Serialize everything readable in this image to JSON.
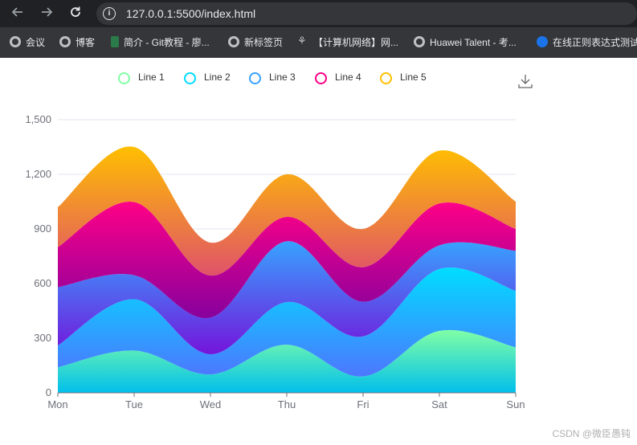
{
  "browser": {
    "url": "127.0.0.1:5500/index.html",
    "back_icon": "arrow-left-icon",
    "forward_icon": "arrow-right-icon",
    "reload_icon": "reload-icon"
  },
  "bookmarks": [
    {
      "label": "会议",
      "icon": "globe-icon"
    },
    {
      "label": "博客",
      "icon": "globe-icon"
    },
    {
      "label": "简介 - Git教程 - 廖...",
      "icon": "git-icon"
    },
    {
      "label": "新标签页",
      "icon": "globe-icon"
    },
    {
      "label": "【计算机网络】网...",
      "icon": "network-icon"
    },
    {
      "label": "Huawei Talent - 考...",
      "icon": "globe-icon"
    },
    {
      "label": "在线正则表达式测试",
      "icon": "regex-icon"
    }
  ],
  "toolbox": {
    "save_icon": "download-icon"
  },
  "watermark": "CSDN @微臣愚钝",
  "chart_data": {
    "type": "area",
    "stacked": true,
    "smooth": true,
    "categories": [
      "Mon",
      "Tue",
      "Wed",
      "Thu",
      "Fri",
      "Sat",
      "Sun"
    ],
    "ylim": [
      0,
      1500
    ],
    "yticks": [
      0,
      300,
      600,
      900,
      1200,
      1500
    ],
    "ytick_labels": [
      "0",
      "300",
      "600",
      "900",
      "1,200",
      "1,500"
    ],
    "grid": true,
    "legend_position": "top-center",
    "series": [
      {
        "name": "Line 1",
        "values": [
          140,
          232,
          101,
          264,
          90,
          340,
          250
        ],
        "legend_color": "#80FFA5",
        "gradient": [
          "#80FFA5",
          "#01BFEC"
        ]
      },
      {
        "name": "Line 2",
        "values": [
          120,
          282,
          111,
          234,
          220,
          340,
          310
        ],
        "legend_color": "#00DDFF",
        "gradient": [
          "#00DDFF",
          "#4D77FF"
        ]
      },
      {
        "name": "Line 3",
        "values": [
          320,
          132,
          201,
          334,
          190,
          130,
          220
        ],
        "legend_color": "#37A2FF",
        "gradient": [
          "#37A2FF",
          "#7415DB"
        ]
      },
      {
        "name": "Line 4",
        "values": [
          220,
          402,
          231,
          134,
          190,
          230,
          120
        ],
        "legend_color": "#FF0087",
        "gradient": [
          "#FF0087",
          "#87009D"
        ]
      },
      {
        "name": "Line 5",
        "values": [
          220,
          302,
          181,
          234,
          210,
          290,
          150
        ],
        "legend_color": "#FFBF00",
        "gradient": [
          "#FFBF00",
          "#E0526A"
        ]
      }
    ]
  }
}
